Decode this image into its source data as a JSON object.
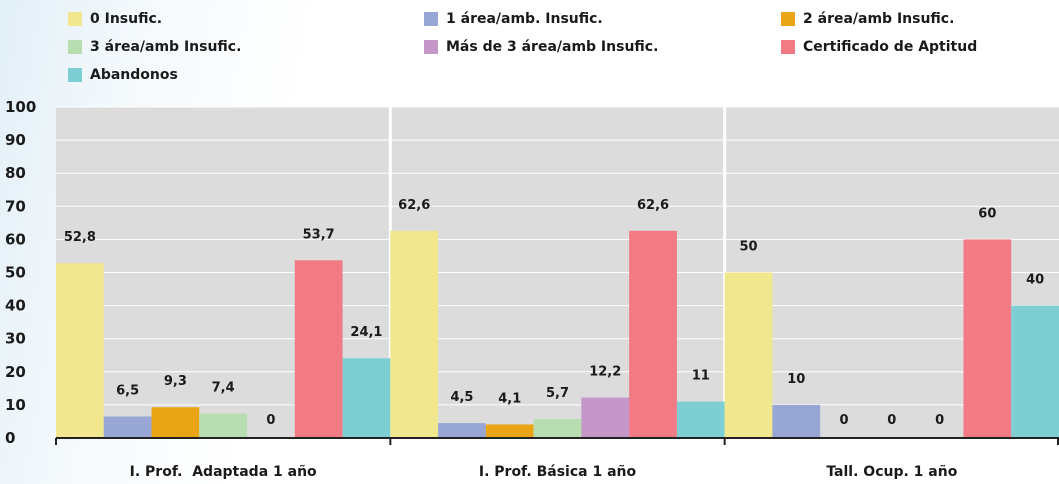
{
  "colors": {
    "plot_bg": "#dcdcdc",
    "gridline": "#ffffff",
    "axis": "#222222"
  },
  "legend": [
    {
      "label": "0 Insufic.",
      "color": "#f1e78f"
    },
    {
      "label": "1 área/amb. Insufic.",
      "color": "#98a6d6"
    },
    {
      "label": "2 área/amb Insufic.",
      "color": "#e9a516"
    },
    {
      "label": "3 área/amb Insufic.",
      "color": "#b8ddb0"
    },
    {
      "label": "Más de 3 área/amb Insufic.",
      "color": "#c596c8"
    },
    {
      "label": "Certificado de Aptitud",
      "color": "#f27a85"
    },
    {
      "label": "Abandonos",
      "color": "#7ecfd4"
    }
  ],
  "chart_data": {
    "type": "bar",
    "categories": [
      "I. Prof.  Adaptada 1 año",
      "I. Prof. Básica 1 año",
      "Tall. Ocup. 1 año"
    ],
    "series": [
      {
        "name": "0 Insufic.",
        "values": [
          52.8,
          62.6,
          50
        ],
        "labels": [
          "52,8",
          "62,6",
          "50"
        ]
      },
      {
        "name": "1 área/amb. Insufic.",
        "values": [
          6.5,
          4.5,
          10
        ],
        "labels": [
          "6,5",
          "4,5",
          "10"
        ]
      },
      {
        "name": "2 área/amb Insufic.",
        "values": [
          9.3,
          4.1,
          0
        ],
        "labels": [
          "9,3",
          "4,1",
          "0"
        ]
      },
      {
        "name": "3 área/amb Insufic.",
        "values": [
          7.4,
          5.7,
          0
        ],
        "labels": [
          "7,4",
          "5,7",
          "0"
        ]
      },
      {
        "name": "Más de 3 área/amb Insufic.",
        "values": [
          0,
          12.2,
          0
        ],
        "labels": [
          "0",
          "12,2",
          "0"
        ]
      },
      {
        "name": "Certificado de Aptitud",
        "values": [
          53.7,
          62.6,
          60
        ],
        "labels": [
          "53,7",
          "62,6",
          "60"
        ]
      },
      {
        "name": "Abandonos",
        "values": [
          24.1,
          11,
          40
        ],
        "labels": [
          "24,1",
          "11",
          "40"
        ]
      }
    ],
    "yticks": [
      "0",
      "10",
      "20",
      "30",
      "40",
      "50",
      "60",
      "70",
      "80",
      "90",
      "100"
    ],
    "ylim": [
      0,
      100
    ],
    "grid": true,
    "legend_position": "top"
  }
}
